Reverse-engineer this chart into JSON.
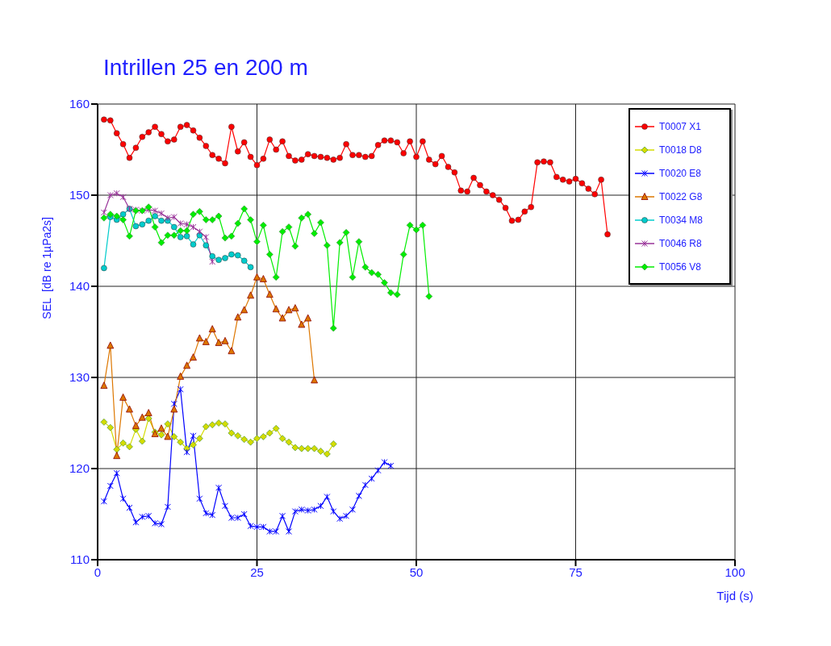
{
  "chart_data": {
    "type": "line",
    "title": "Intrillen 25 en 200 m",
    "xlabel": "Tijd (s)",
    "ylabel": "SEL  [dB re 1µPa2s]",
    "x": [
      1,
      2,
      3,
      4,
      5,
      6,
      7,
      8,
      9,
      10,
      11,
      12,
      13,
      14,
      15,
      16,
      17,
      18,
      19,
      20,
      21,
      22,
      23,
      24,
      25,
      26,
      27,
      28,
      29,
      30,
      31,
      32,
      33,
      34,
      35,
      36,
      37,
      38,
      39,
      40,
      41,
      42,
      43,
      44,
      45,
      46,
      47,
      48,
      49,
      50,
      51,
      52,
      53,
      54,
      55,
      56,
      57,
      58,
      59,
      60,
      61,
      62,
      63,
      64,
      65,
      66,
      67,
      68,
      69,
      70,
      71,
      72,
      73,
      74,
      75,
      76,
      77,
      78,
      79,
      80
    ],
    "xlim": [
      0,
      100
    ],
    "xticks": [
      0,
      25,
      50,
      75,
      100
    ],
    "ylim": [
      110,
      160
    ],
    "yticks": [
      110,
      120,
      130,
      140,
      150,
      160
    ],
    "grid": true,
    "legend": "top right",
    "series": [
      {
        "name": "T0007 X1",
        "color": "#ff0000",
        "marker": "circle",
        "values": [
          158.3,
          158.2,
          156.8,
          155.6,
          154.1,
          155.2,
          156.4,
          156.9,
          157.5,
          156.7,
          155.9,
          156.1,
          157.5,
          157.7,
          157.1,
          156.3,
          155.4,
          154.4,
          154.0,
          153.5,
          157.5,
          154.8,
          155.8,
          154.2,
          153.3,
          154.0,
          156.1,
          155.0,
          155.9,
          154.3,
          153.8,
          153.9,
          154.5,
          154.3,
          154.2,
          154.1,
          153.9,
          154.1,
          155.6,
          154.4,
          154.4,
          154.2,
          154.3,
          155.5,
          156.0,
          156.0,
          155.8,
          154.6,
          155.9,
          154.2,
          155.9,
          153.9,
          153.4,
          154.3,
          153.1,
          152.5,
          150.5,
          150.4,
          151.9,
          151.1,
          150.4,
          150.0,
          149.5,
          148.6,
          147.2,
          147.3,
          148.2,
          148.7,
          153.6,
          153.7,
          153.6,
          152.0,
          151.7,
          151.5,
          151.8,
          151.3,
          150.7,
          150.1,
          151.7,
          145.7
        ]
      },
      {
        "name": "T0018 D8",
        "color": "#d4dc00",
        "marker": "diamond",
        "x": [
          1,
          2,
          3,
          4,
          5,
          6,
          7,
          8,
          9,
          10,
          11,
          12,
          13,
          14,
          15,
          16,
          17,
          18,
          19,
          20,
          21,
          22,
          23,
          24,
          25,
          26,
          27,
          28,
          29,
          30,
          31,
          32,
          33,
          34,
          35,
          36,
          37
        ],
        "values": [
          125.1,
          124.5,
          122.1,
          122.8,
          122.4,
          124.3,
          123.0,
          125.5,
          124.0,
          123.7,
          124.9,
          123.5,
          122.9,
          122.2,
          122.6,
          123.3,
          124.6,
          124.8,
          125.0,
          124.9,
          123.9,
          123.6,
          123.2,
          122.9,
          123.3,
          123.5,
          123.9,
          124.4,
          123.3,
          122.9,
          122.3,
          122.2,
          122.2,
          122.2,
          121.9,
          121.6,
          122.7
        ]
      },
      {
        "name": "T0020 E8",
        "color": "#0000ff",
        "marker": "cross",
        "x": [
          1,
          2,
          3,
          4,
          5,
          6,
          7,
          8,
          9,
          10,
          11,
          12,
          13,
          14,
          15,
          16,
          17,
          18,
          19,
          20,
          21,
          22,
          23,
          24,
          25,
          26,
          27,
          28,
          29,
          30,
          31,
          32,
          33,
          34,
          35,
          36,
          37,
          38,
          39,
          40,
          41,
          42,
          43,
          44,
          45,
          46
        ],
        "values": [
          116.4,
          118.1,
          119.5,
          116.7,
          115.7,
          114.1,
          114.7,
          114.8,
          114.0,
          113.9,
          115.8,
          127.1,
          128.7,
          121.8,
          123.6,
          116.7,
          115.1,
          114.9,
          117.9,
          115.9,
          114.6,
          114.6,
          115.0,
          113.7,
          113.6,
          113.6,
          113.1,
          113.1,
          114.8,
          113.1,
          115.3,
          115.5,
          115.4,
          115.5,
          115.9,
          116.9,
          115.3,
          114.5,
          114.8,
          115.5,
          117.0,
          118.2,
          118.9,
          119.8,
          120.7,
          120.3
        ]
      },
      {
        "name": "T0022 G8",
        "color": "#dd7700",
        "marker": "triangle",
        "x": [
          1,
          2,
          3,
          4,
          5,
          6,
          7,
          8,
          9,
          10,
          11,
          12,
          13,
          14,
          15,
          16,
          17,
          18,
          19,
          20,
          21,
          22,
          23,
          24,
          25,
          26,
          27,
          28,
          29,
          30,
          31,
          32,
          33,
          34
        ],
        "values": [
          129.1,
          133.5,
          121.4,
          127.8,
          126.5,
          124.7,
          125.6,
          126.1,
          123.8,
          124.4,
          123.5,
          126.5,
          130.1,
          131.3,
          132.2,
          134.3,
          133.9,
          135.3,
          133.8,
          134.0,
          132.9,
          136.6,
          137.4,
          139.0,
          141.0,
          140.8,
          139.1,
          137.5,
          136.5,
          137.4,
          137.6,
          135.8,
          136.5,
          129.7
        ]
      },
      {
        "name": "T0034 M8",
        "color": "#00cccc",
        "marker": "circle",
        "x": [
          1,
          2,
          3,
          4,
          5,
          6,
          7,
          8,
          9,
          10,
          11,
          12,
          13,
          14,
          15,
          16,
          17,
          18,
          19,
          20,
          21,
          22,
          23,
          24
        ],
        "values": [
          142.0,
          147.6,
          147.3,
          147.9,
          148.5,
          146.6,
          146.8,
          147.2,
          147.7,
          147.2,
          147.2,
          146.5,
          145.4,
          145.5,
          144.6,
          145.6,
          144.5,
          143.3,
          142.9,
          143.1,
          143.5,
          143.4,
          142.8,
          142.1
        ]
      },
      {
        "name": "T0046 R8",
        "color": "#993399",
        "marker": "cross",
        "x": [
          1,
          2,
          3,
          4,
          5,
          6,
          7,
          8,
          9,
          10,
          11,
          12,
          13,
          14,
          15,
          16,
          17,
          18
        ],
        "values": [
          148.1,
          150.0,
          150.2,
          149.8,
          148.5,
          148.4,
          148.3,
          148.4,
          148.3,
          148.0,
          147.5,
          147.6,
          146.9,
          146.8,
          146.5,
          146.0,
          145.4,
          142.7
        ]
      },
      {
        "name": "T0056 V8",
        "color": "#00ee00",
        "marker": "diamond",
        "x": [
          1,
          2,
          3,
          4,
          5,
          6,
          7,
          8,
          9,
          10,
          11,
          12,
          13,
          14,
          15,
          16,
          17,
          18,
          19,
          20,
          21,
          22,
          23,
          24,
          25,
          26,
          27,
          28,
          29,
          30,
          31,
          32,
          33,
          34,
          35,
          36,
          37,
          38,
          39,
          40,
          41,
          42,
          43,
          44,
          45,
          46,
          47,
          48,
          49,
          50,
          51,
          52
        ],
        "values": [
          147.5,
          147.9,
          147.7,
          147.3,
          145.5,
          148.3,
          148.3,
          148.7,
          146.5,
          144.8,
          145.6,
          145.6,
          146.1,
          146.1,
          147.9,
          148.2,
          147.3,
          147.3,
          147.7,
          145.3,
          145.5,
          146.9,
          148.5,
          147.3,
          144.9,
          146.7,
          143.5,
          141.0,
          146.0,
          146.5,
          144.4,
          147.5,
          147.9,
          145.8,
          147.0,
          144.5,
          135.4,
          144.8,
          145.9,
          141.0,
          144.9,
          142.1,
          141.5,
          141.3,
          140.4,
          139.3,
          139.1,
          143.5,
          146.7,
          146.2,
          146.7,
          138.9
        ]
      }
    ]
  }
}
